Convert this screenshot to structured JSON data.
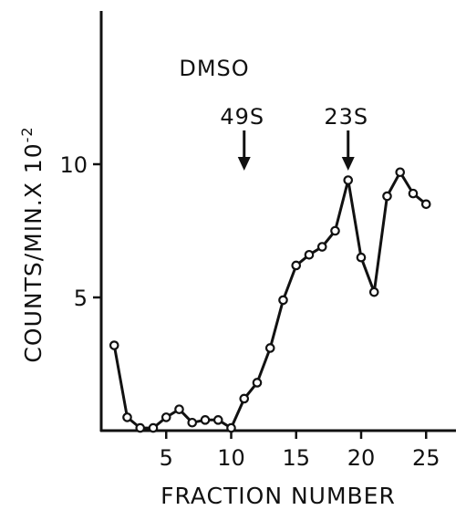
{
  "chart_data": {
    "type": "line",
    "title": "",
    "xlabel": "FRACTION NUMBER",
    "ylabel_main": "COUNTS/MIN.X 10",
    "ylabel_exp": "-2",
    "xlim": [
      0,
      28
    ],
    "ylim": [
      0,
      15
    ],
    "x_ticks": [
      5,
      10,
      15,
      20,
      25
    ],
    "y_ticks": [
      5,
      10
    ],
    "grid": false,
    "series": [
      {
        "x": [
          1,
          2,
          3,
          4,
          5,
          6,
          7,
          8,
          9,
          10,
          11,
          12,
          13,
          14,
          15,
          16,
          17,
          18,
          19,
          20,
          21,
          22,
          23,
          24,
          25
        ],
        "values": [
          3.2,
          0.5,
          0.1,
          0.1,
          0.5,
          0.8,
          0.3,
          0.4,
          0.4,
          0.1,
          1.2,
          1.8,
          3.1,
          4.9,
          6.2,
          6.6,
          6.9,
          7.5,
          9.4,
          6.5,
          5.2,
          8.8,
          9.7,
          8.9,
          8.5
        ]
      }
    ],
    "annotations": [
      {
        "text": "DMSO",
        "arrow": false
      },
      {
        "text": "49S",
        "x": 11,
        "arrow": true
      },
      {
        "text": "23S",
        "x": 19,
        "arrow": true
      }
    ]
  }
}
